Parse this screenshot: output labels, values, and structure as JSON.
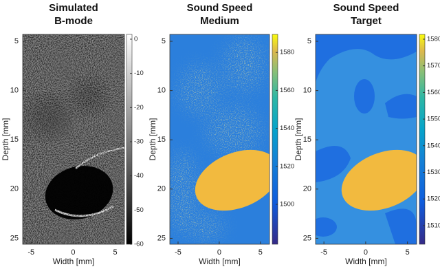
{
  "chart_data": [
    {
      "type": "image",
      "title": [
        "Simulated",
        "B-mode"
      ],
      "xlabel": "Width [mm]",
      "ylabel": "Depth [mm]",
      "xlim": [
        -6,
        6.1
      ],
      "xticks": [
        -5,
        0,
        5
      ],
      "ylim": [
        4.3,
        25.6
      ],
      "yticks": [
        5,
        10,
        15,
        20,
        25
      ],
      "colormap": "gray",
      "clim": [
        -60,
        1.4
      ],
      "cticks": [
        0,
        -10,
        -20,
        -30,
        -40,
        -50,
        -60
      ]
    },
    {
      "type": "image",
      "title": [
        "Sound Speed",
        "Medium"
      ],
      "xlabel": "Width [mm]",
      "ylabel": "Depth [mm]",
      "xlim": [
        -6,
        6.1
      ],
      "xticks": [
        -5,
        0,
        5
      ],
      "ylim": [
        4.3,
        25.6
      ],
      "yticks": [
        5,
        10,
        15,
        20,
        25
      ],
      "colormap": "parula",
      "clim": [
        1479,
        1589.5
      ],
      "cticks": [
        1580,
        1560,
        1540,
        1520,
        1500
      ]
    },
    {
      "type": "image",
      "title": [
        "Sound Speed",
        "Target"
      ],
      "xlabel": "Width [mm]",
      "ylabel": "Depth [mm]",
      "xlim": [
        -6,
        6.1
      ],
      "xticks": [
        -5,
        0,
        5
      ],
      "ylim": [
        4.3,
        25.6
      ],
      "yticks": [
        5,
        10,
        15,
        20,
        25
      ],
      "colormap": "parula",
      "clim": [
        1503,
        1581.8
      ],
      "cticks": [
        1580,
        1570,
        1560,
        1550,
        1540,
        1530,
        1520,
        1510
      ]
    }
  ]
}
